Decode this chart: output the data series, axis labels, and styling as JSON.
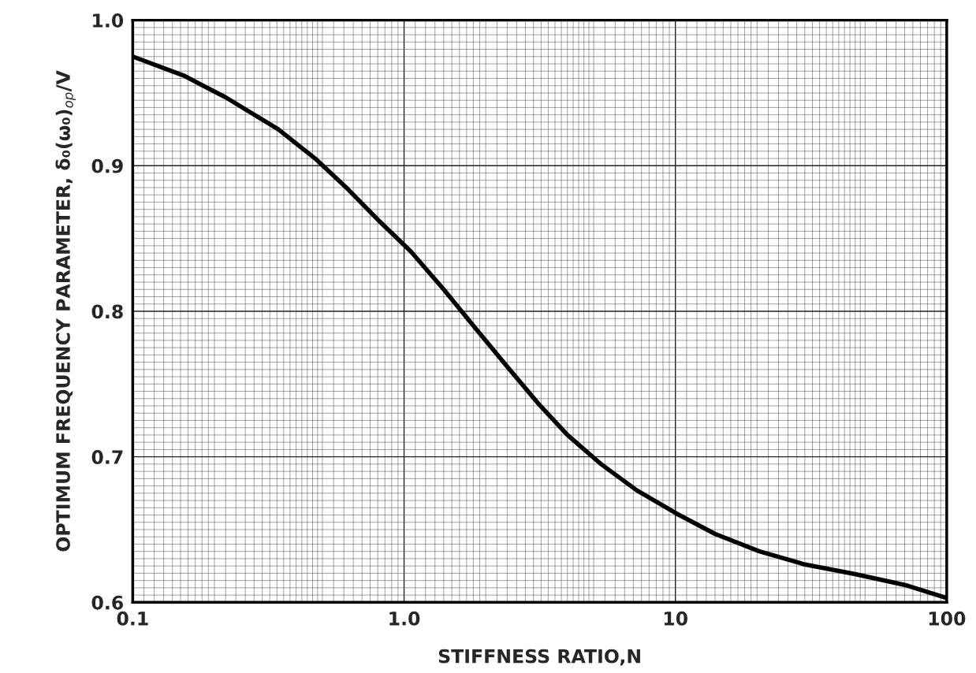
{
  "chart_data": {
    "type": "line",
    "xlabel": "STIFFNESS RATIO,N",
    "ylabel": "OPTIMUM FREQUENCY PARAMETER, δ₀(ω₀)$_{op}$/V",
    "x": [
      0.1,
      0.154,
      0.22,
      0.344,
      0.47,
      0.62,
      0.8,
      1.06,
      1.4,
      1.82,
      2.4,
      3.11,
      4.0,
      5.32,
      7.2,
      10.1,
      14,
      20.4,
      30,
      45.6,
      70,
      100
    ],
    "series": [
      {
        "color": "#000000",
        "values": [
          0.975,
          0.962,
          0.947,
          0.925,
          0.905,
          0.884,
          0.863,
          0.841,
          0.815,
          0.789,
          0.762,
          0.737,
          0.715,
          0.695,
          0.677,
          0.661,
          0.647,
          0.635,
          0.626,
          0.6195,
          0.612,
          0.603
        ]
      }
    ],
    "log": "x",
    "xlim": [
      0.1,
      100
    ],
    "xticks": [
      0.1,
      {
        "value": 1,
        "label": "1.0"
      },
      10,
      100
    ],
    "ylim": [
      0.6,
      1.0
    ],
    "yticks": [
      0.6,
      0.7,
      0.8,
      0.9,
      {
        "value": 1.0,
        "label": "1.0"
      }
    ],
    "grid": true,
    "marker": "none",
    "line_style": "solid"
  }
}
